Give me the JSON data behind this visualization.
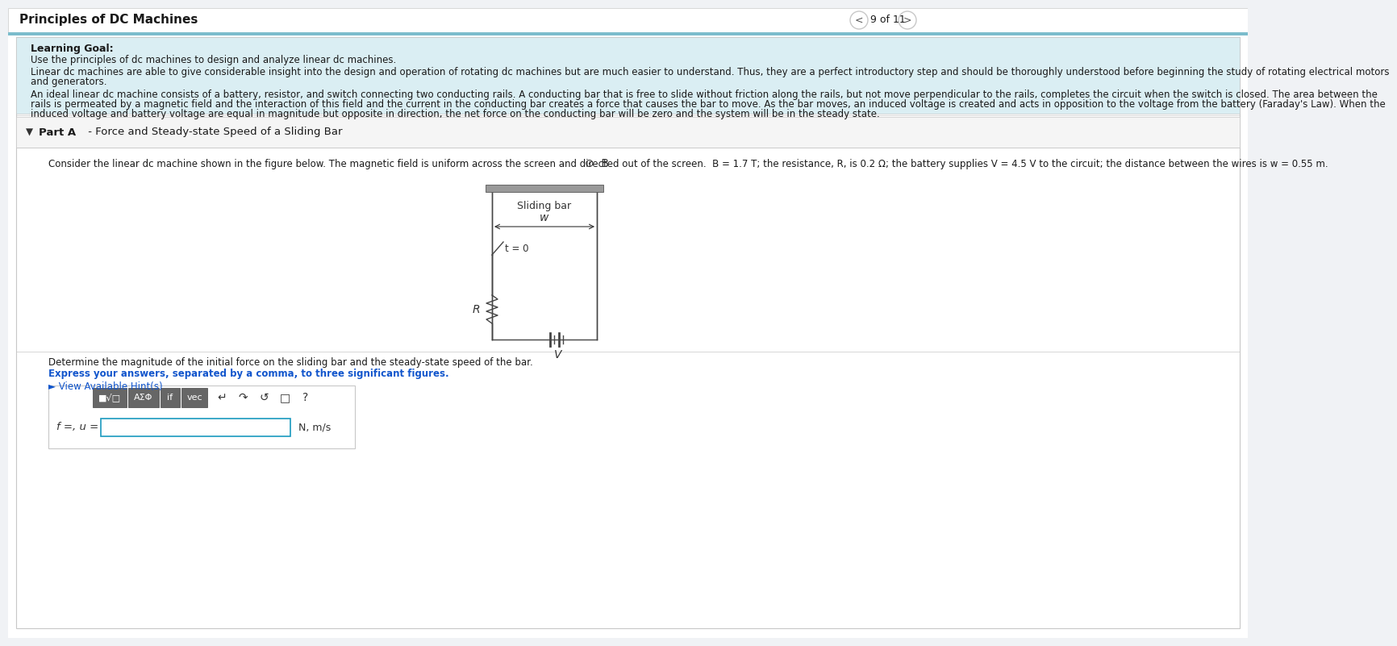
{
  "title": "Principles of DC Machines",
  "page_info": "9 of 11",
  "bg_color": "#f0f2f5",
  "white": "#ffffff",
  "light_blue_bg": "#daeef3",
  "border_gray": "#c8c8c8",
  "dark_text": "#1a1a1a",
  "blue_text": "#1155cc",
  "gray_text": "#555555",
  "header_blue": "#4488cc",
  "teal_stripe": "#7bbccc",
  "toolbar_bg": "#e8e8e8",
  "toolbar_btn": "#6b6b6b",
  "input_border": "#1a9abf",
  "learning_goal_bold": "Learning Goal:",
  "learning_goal_text": "Use the principles of dc machines to design and analyze linear dc machines.",
  "intro1a": "Linear dc machines are able to give considerable insight into the design and operation of rotating dc machines but are much easier to understand. Thus, they are a perfect introductory step and should be thoroughly understood before beginning the study of rotating electrical motors",
  "intro1b": "and generators.",
  "intro2a": "An ideal linear dc machine consists of a battery, resistor, and switch connecting two conducting rails. A conducting bar that is free to slide without friction along the rails, but not move perpendicular to the rails, completes the circuit when the switch is closed. The area between the",
  "intro2b": "rails is permeated by a magnetic field and the interaction of this field and the current in the conducting bar creates a force that causes the bar to move. As the bar moves, an induced voltage is created and acts in opposition to the voltage from the battery (Faraday's Law). When the",
  "intro2c": "induced voltage and battery voltage are equal in magnitude but opposite in direction, the net force on the conducting bar will be zero and the system will be in the steady state.",
  "part_a": "Part A",
  "part_a_rest": " - Force and Steady-state Speed of a Sliding Bar",
  "problem_line": "Consider the linear dc machine shown in the figure below. The magnetic field is uniform across the screen and directed out of the screen.",
  "problem_vals": "B = 1.7 T; the resistance, R, is 0.2 Ω; the battery supplies V = 4.5 V to the circuit; the distance between the wires is w = 0.55 m.",
  "determine": "Determine the magnitude of the initial force on the sliding bar and the steady-state speed of the bar.",
  "express": "Express your answers, separated by a comma, to three significant figures.",
  "hint": "► View Available Hint(s)",
  "ans_label": "f =, u =",
  "ans_unit": "N, m/s"
}
